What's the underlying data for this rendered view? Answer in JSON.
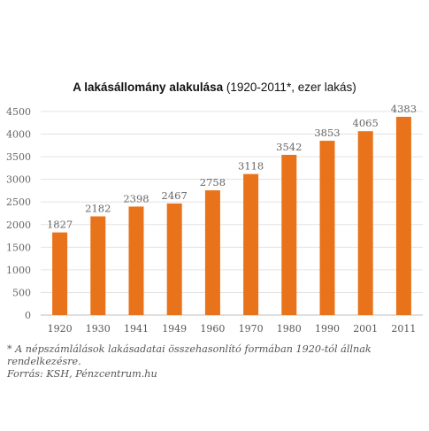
{
  "chart_data": {
    "type": "bar",
    "title_bold": "A lakásállomány alakulása",
    "title_rest": "(1920-2011*, ezer lakás)",
    "categories": [
      "1920",
      "1930",
      "1941",
      "1949",
      "1960",
      "1970",
      "1980",
      "1990",
      "2001",
      "2011"
    ],
    "values": [
      1827,
      2182,
      2398,
      2467,
      2758,
      3118,
      3542,
      3853,
      4065,
      4383
    ],
    "data_labels": [
      "1827",
      "2182",
      "2398",
      "2467",
      "2758",
      "3118",
      "3542",
      "3853",
      "4065",
      "4383"
    ],
    "yticks": [
      "0",
      "500",
      "1000",
      "1500",
      "2000",
      "2500",
      "3000",
      "3500",
      "4000",
      "4500"
    ],
    "ylim": [
      0,
      4500
    ],
    "grid": true,
    "bar_color": "#E8731A",
    "xlabel": "",
    "ylabel": ""
  },
  "footnote": {
    "line1": "* A népszámlálások lakásadatai összehasonlító formában 1920-tól állnak",
    "line2": "rendelkezésre.",
    "source": "Forrás: KSH, Pénzcentrum.hu"
  }
}
